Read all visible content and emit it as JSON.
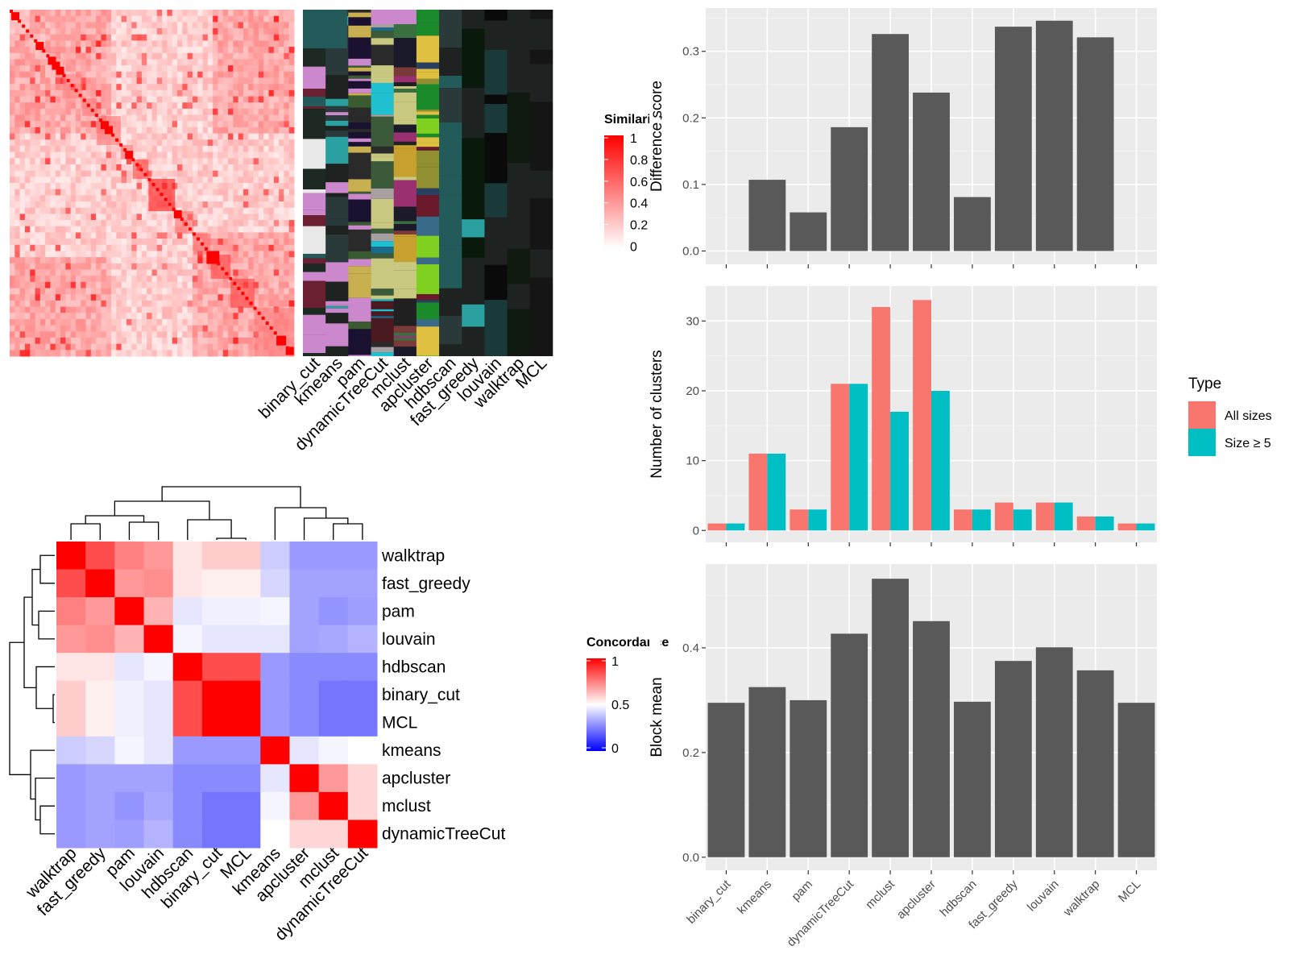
{
  "chart_data": [
    {
      "type": "heatmap",
      "legend_title": "Similarity",
      "legend_ticks": [
        "1",
        "0.8",
        "0.6",
        "0.4",
        "0.2",
        "0"
      ],
      "colors": {
        "low": "#ffffff",
        "high": "#ff0000"
      },
      "methods": [
        "binary_cut",
        "kmeans",
        "pam",
        "dynamicTreeCut",
        "mclust",
        "apcluster",
        "hdbscan",
        "fast_greedy",
        "louvain",
        "walktrap",
        "MCL"
      ],
      "diagonal_blocks": [
        0.15,
        0.15,
        0.25,
        0.5,
        0.55,
        0.6,
        0.6,
        0.8,
        1.0,
        0.6,
        0.6,
        0.8,
        0.8,
        0.55
      ]
    },
    {
      "type": "heatmap",
      "legend_title": "Concordance",
      "legend_ticks": [
        "1",
        "0.5",
        "0"
      ],
      "colors": {
        "low": "#0000ff",
        "mid": "#ffffff",
        "high": "#ff0000"
      },
      "row_labels": [
        "walktrap",
        "fast_greedy",
        "pam",
        "louvain",
        "hdbscan",
        "binary_cut",
        "MCL",
        "kmeans",
        "apcluster",
        "mclust",
        "dynamicTreeCut"
      ],
      "col_labels": [
        "walktrap",
        "fast_greedy",
        "pam",
        "louvain",
        "hdbscan",
        "binary_cut",
        "MCL",
        "kmeans",
        "apcluster",
        "mclust",
        "dynamicTreeCut"
      ],
      "values": [
        [
          1.0,
          0.85,
          0.75,
          0.7,
          0.55,
          0.6,
          0.6,
          0.4,
          0.3,
          0.3,
          0.3
        ],
        [
          0.85,
          1.0,
          0.7,
          0.72,
          0.55,
          0.53,
          0.53,
          0.42,
          0.32,
          0.32,
          0.32
        ],
        [
          0.75,
          0.7,
          1.0,
          0.65,
          0.45,
          0.47,
          0.47,
          0.48,
          0.32,
          0.29,
          0.31
        ],
        [
          0.7,
          0.72,
          0.65,
          1.0,
          0.48,
          0.45,
          0.45,
          0.45,
          0.32,
          0.33,
          0.35
        ],
        [
          0.55,
          0.55,
          0.45,
          0.48,
          1.0,
          0.85,
          0.85,
          0.3,
          0.27,
          0.27,
          0.27
        ],
        [
          0.6,
          0.53,
          0.47,
          0.45,
          0.85,
          1.0,
          1.0,
          0.3,
          0.27,
          0.23,
          0.23
        ],
        [
          0.6,
          0.53,
          0.47,
          0.45,
          0.85,
          1.0,
          1.0,
          0.3,
          0.27,
          0.23,
          0.23
        ],
        [
          0.4,
          0.42,
          0.48,
          0.45,
          0.3,
          0.3,
          0.3,
          1.0,
          0.45,
          0.48,
          0.5
        ],
        [
          0.3,
          0.32,
          0.32,
          0.32,
          0.27,
          0.27,
          0.27,
          0.45,
          1.0,
          0.7,
          0.58
        ],
        [
          0.3,
          0.32,
          0.29,
          0.33,
          0.27,
          0.23,
          0.23,
          0.48,
          0.7,
          1.0,
          0.58
        ],
        [
          0.3,
          0.32,
          0.31,
          0.35,
          0.27,
          0.23,
          0.23,
          0.5,
          0.58,
          0.58,
          1.0
        ]
      ]
    },
    {
      "type": "bar",
      "categories": [
        "binary_cut",
        "kmeans",
        "pam",
        "dynamicTreeCut",
        "mclust",
        "apcluster",
        "hdbscan",
        "fast_greedy",
        "louvain",
        "walktrap",
        "MCL"
      ],
      "values": [
        0,
        0.107,
        0.058,
        0.186,
        0.326,
        0.238,
        0.081,
        0.337,
        0.346,
        0.321,
        0
      ],
      "ylabel": "Difference score",
      "yticks": [
        0.0,
        0.1,
        0.2,
        0.3
      ],
      "ylim": [
        -0.02,
        0.365
      ],
      "color": "#595959",
      "grid": true
    },
    {
      "type": "bar",
      "categories": [
        "binary_cut",
        "kmeans",
        "pam",
        "dynamicTreeCut",
        "mclust",
        "apcluster",
        "hdbscan",
        "fast_greedy",
        "louvain",
        "walktrap",
        "MCL"
      ],
      "series": [
        {
          "name": "All sizes",
          "values": [
            1,
            11,
            3,
            21,
            32,
            33,
            3,
            4,
            4,
            2,
            1
          ],
          "color": "#F8766D"
        },
        {
          "name": "Size ≥ 5",
          "values": [
            1,
            11,
            3,
            21,
            17,
            20,
            3,
            3,
            4,
            2,
            1
          ],
          "color": "#00BFC4"
        }
      ],
      "ylabel": "Number of clusters",
      "yticks": [
        0,
        10,
        20,
        30
      ],
      "ylim": [
        -1.7,
        35
      ],
      "legend_title": "Type",
      "legend_position": "right",
      "grid": true
    },
    {
      "type": "bar",
      "categories": [
        "binary_cut",
        "kmeans",
        "pam",
        "dynamicTreeCut",
        "mclust",
        "apcluster",
        "hdbscan",
        "fast_greedy",
        "louvain",
        "walktrap",
        "MCL"
      ],
      "values": [
        0.295,
        0.325,
        0.3,
        0.427,
        0.532,
        0.451,
        0.297,
        0.375,
        0.401,
        0.357,
        0.295
      ],
      "ylabel": "Block mean",
      "yticks": [
        0.0,
        0.2,
        0.4
      ],
      "ylim": [
        -0.025,
        0.56
      ],
      "color": "#595959",
      "grid": true
    }
  ]
}
